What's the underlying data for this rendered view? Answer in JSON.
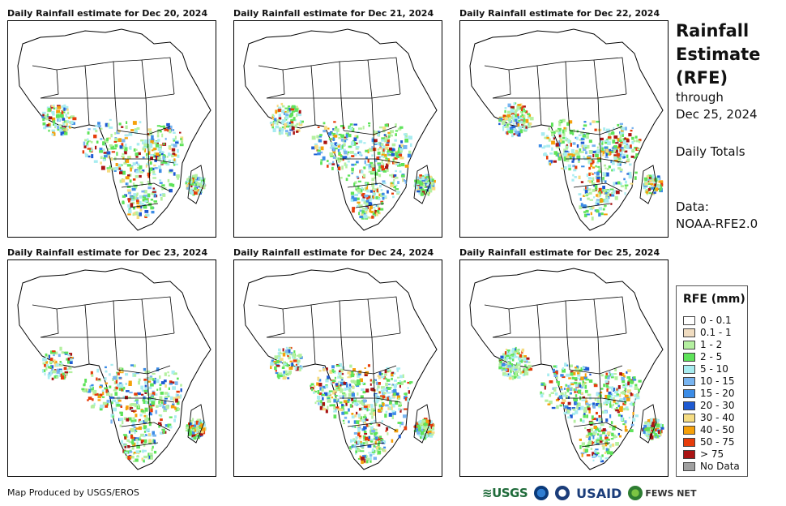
{
  "panels": [
    {
      "title": "Daily Rainfall estimate for Dec 20, 2024"
    },
    {
      "title": "Daily Rainfall estimate for Dec 21, 2024"
    },
    {
      "title": "Daily Rainfall estimate for Dec 22, 2024"
    },
    {
      "title": "Daily Rainfall estimate for Dec 23, 2024"
    },
    {
      "title": "Daily Rainfall estimate for Dec 24, 2024"
    },
    {
      "title": "Daily Rainfall estimate for Dec 25, 2024"
    }
  ],
  "side": {
    "title_line1": "Rainfall",
    "title_line2": "Estimate",
    "title_line3": "(RFE)",
    "through": "through",
    "date": "Dec 25, 2024",
    "totals": "Daily Totals",
    "data_label": "Data:",
    "data_source": "NOAA-RFE2.0"
  },
  "legend": {
    "title": "RFE (mm)",
    "items": [
      {
        "label": "0 - 0.1",
        "color": "#ffffff"
      },
      {
        "label": "0.1 - 1",
        "color": "#f0dcc0"
      },
      {
        "label": "1 - 2",
        "color": "#b4f0a0"
      },
      {
        "label": "2 - 5",
        "color": "#5ee35a"
      },
      {
        "label": "5 - 10",
        "color": "#a8ecf0"
      },
      {
        "label": "10 - 15",
        "color": "#78b4f0"
      },
      {
        "label": "15 - 20",
        "color": "#3c8ce6"
      },
      {
        "label": "20 - 30",
        "color": "#1e5ad2"
      },
      {
        "label": "30 - 40",
        "color": "#f5dc82"
      },
      {
        "label": "40 - 50",
        "color": "#f5a00a"
      },
      {
        "label": "50 - 75",
        "color": "#e63c0a"
      },
      {
        "label": "> 75",
        "color": "#aa1414"
      },
      {
        "label": "No Data",
        "color": "#a0a0a0"
      }
    ]
  },
  "footer": {
    "credit": "Map Produced by USGS/EROS",
    "logo_usgs": "≋USGS",
    "logo_usaid": "USAID",
    "logo_fews": "FEWS NET"
  }
}
